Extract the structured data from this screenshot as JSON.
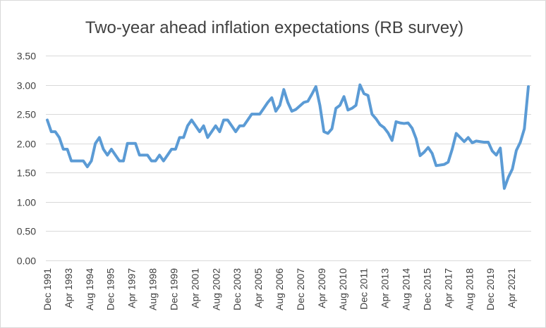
{
  "chart_data": {
    "type": "line",
    "title": "Two-year ahead inflation expectations (RB survey)",
    "xlabel": "",
    "ylabel": "",
    "ylim": [
      0,
      3.5
    ],
    "ytick_step": 0.5,
    "grid": true,
    "legend": "none",
    "line_color": "#5b9bd5",
    "grid_color": "#d9d9d9",
    "x_tick_labels": [
      "Dec 1991",
      "Apr 1993",
      "Aug 1994",
      "Dec 1995",
      "Apr 1997",
      "Aug 1998",
      "Dec 1999",
      "Apr 2001",
      "Aug 2002",
      "Dec 2003",
      "Apr 2005",
      "Aug 2006",
      "Dec 2007",
      "Apr 2009",
      "Aug 2010",
      "Dec 2011",
      "Apr 2013",
      "Aug 2014",
      "Dec 2015",
      "Apr 2017",
      "Aug 2018",
      "Dec 2019",
      "Apr 2021"
    ],
    "series": [
      {
        "name": "Two-year ahead inflation expectations",
        "values": [
          2.4,
          2.2,
          2.2,
          2.1,
          1.9,
          1.9,
          1.7,
          1.7,
          1.7,
          1.7,
          1.6,
          1.7,
          2.0,
          2.1,
          1.9,
          1.8,
          1.9,
          1.8,
          1.7,
          1.7,
          2.0,
          2.0,
          2.0,
          1.8,
          1.8,
          1.8,
          1.7,
          1.7,
          1.8,
          1.7,
          1.8,
          1.9,
          1.9,
          2.1,
          2.1,
          2.3,
          2.4,
          2.3,
          2.2,
          2.3,
          2.1,
          2.2,
          2.3,
          2.2,
          2.4,
          2.4,
          2.3,
          2.2,
          2.3,
          2.3,
          2.4,
          2.5,
          2.5,
          2.5,
          2.6,
          2.7,
          2.78,
          2.55,
          2.65,
          2.92,
          2.7,
          2.55,
          2.58,
          2.64,
          2.7,
          2.72,
          2.84,
          2.97,
          2.65,
          2.2,
          2.17,
          2.25,
          2.6,
          2.65,
          2.8,
          2.57,
          2.6,
          2.65,
          3.0,
          2.85,
          2.82,
          2.5,
          2.42,
          2.32,
          2.27,
          2.18,
          2.05,
          2.37,
          2.35,
          2.34,
          2.35,
          2.26,
          2.08,
          1.79,
          1.85,
          1.93,
          1.83,
          1.62,
          1.63,
          1.64,
          1.68,
          1.9,
          2.17,
          2.1,
          2.03,
          2.1,
          2.01,
          2.04,
          2.03,
          2.02,
          2.02,
          1.87,
          1.8,
          1.92,
          1.23,
          1.42,
          1.56,
          1.88,
          2.02,
          2.25,
          2.97
        ]
      }
    ]
  }
}
